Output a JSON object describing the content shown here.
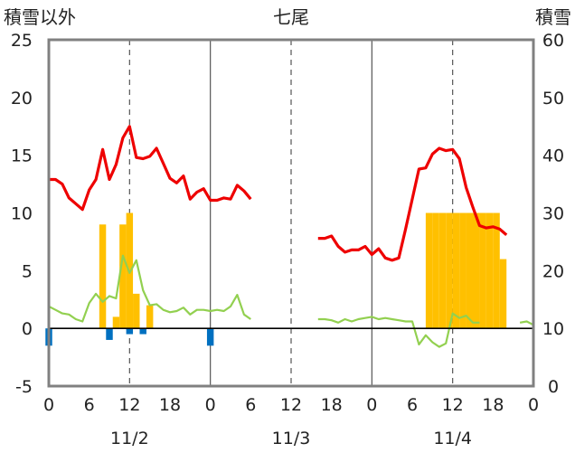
{
  "chart_data": {
    "type": "line",
    "title": "七尾",
    "ylabel_left": "積雪以外",
    "ylabel_right": "積雪",
    "ylim_left": [
      -5,
      25
    ],
    "ylim_right": [
      0,
      60
    ],
    "y_ticks_left": [
      "25",
      "20",
      "15",
      "10",
      "5",
      "0",
      "-5"
    ],
    "y_ticks_right": [
      "60",
      "50",
      "40",
      "30",
      "20",
      "10",
      "0"
    ],
    "x_range_hours": [
      0,
      72
    ],
    "x_tick_labels": [
      "0",
      "6",
      "12",
      "18",
      "0",
      "6",
      "12",
      "18",
      "0",
      "6",
      "12",
      "18",
      "0"
    ],
    "date_labels": [
      "11/2",
      "11/3",
      "11/4"
    ],
    "grid": "vertical dashed at 12:00, solid at day boundaries",
    "colors": {
      "temperature": "#ee0000",
      "humidity_line": "#92d050",
      "snow_bar": "#ffc000",
      "precip_bar": "#0070c0",
      "frame": "#808080",
      "zero_line": "#000000"
    },
    "series": [
      {
        "name": "",
        "kind": "line",
        "axis": "left",
        "color": "#ee0000",
        "segments": [
          [
            [
              0,
              12.9
            ],
            [
              1,
              12.9
            ],
            [
              2,
              12.5
            ],
            [
              3,
              11.3
            ],
            [
              4,
              10.8
            ],
            [
              5,
              10.3
            ],
            [
              6,
              12.0
            ],
            [
              7,
              12.9
            ],
            [
              8,
              15.5
            ],
            [
              9,
              12.9
            ],
            [
              10,
              14.2
            ],
            [
              11,
              16.5
            ],
            [
              12,
              17.5
            ],
            [
              13,
              14.8
            ],
            [
              14,
              14.7
            ],
            [
              15,
              14.9
            ],
            [
              16,
              15.6
            ],
            [
              17,
              14.3
            ],
            [
              18,
              13.0
            ],
            [
              19,
              12.6
            ],
            [
              20,
              13.2
            ],
            [
              21,
              11.2
            ],
            [
              22,
              11.8
            ],
            [
              23,
              12.1
            ],
            [
              24,
              11.1
            ],
            [
              25,
              11.1
            ],
            [
              26,
              11.3
            ],
            [
              27,
              11.2
            ],
            [
              28,
              12.4
            ],
            [
              29,
              11.9
            ],
            [
              30,
              11.2
            ]
          ],
          [
            [
              40,
              7.8
            ],
            [
              41,
              7.8
            ],
            [
              42,
              8.0
            ],
            [
              43,
              7.1
            ],
            [
              44,
              6.6
            ],
            [
              45,
              6.8
            ],
            [
              46,
              6.8
            ],
            [
              47,
              7.1
            ],
            [
              48,
              6.4
            ],
            [
              49,
              6.9
            ],
            [
              50,
              6.1
            ],
            [
              51,
              5.9
            ],
            [
              52,
              6.1
            ],
            [
              53,
              8.6
            ],
            [
              54,
              11.2
            ],
            [
              55,
              13.8
            ],
            [
              56,
              13.9
            ],
            [
              57,
              15.1
            ],
            [
              58,
              15.6
            ],
            [
              59,
              15.4
            ],
            [
              60,
              15.5
            ],
            [
              61,
              14.7
            ],
            [
              62,
              12.2
            ],
            [
              63,
              10.5
            ],
            [
              64,
              8.9
            ],
            [
              65,
              8.7
            ],
            [
              66,
              8.8
            ],
            [
              67,
              8.6
            ],
            [
              68,
              8.1
            ]
          ]
        ]
      },
      {
        "name": "",
        "kind": "line",
        "axis": "left",
        "color": "#92d050",
        "segments": [
          [
            [
              0,
              1.9
            ],
            [
              1,
              1.6
            ],
            [
              2,
              1.3
            ],
            [
              3,
              1.2
            ],
            [
              4,
              0.8
            ],
            [
              5,
              0.6
            ],
            [
              6,
              2.2
            ],
            [
              7,
              3.0
            ],
            [
              8,
              2.3
            ],
            [
              9,
              2.8
            ],
            [
              10,
              2.6
            ],
            [
              11,
              6.3
            ],
            [
              12,
              4.8
            ],
            [
              13,
              5.9
            ],
            [
              14,
              3.3
            ],
            [
              15,
              2.0
            ],
            [
              16,
              2.1
            ],
            [
              17,
              1.6
            ],
            [
              18,
              1.4
            ],
            [
              19,
              1.5
            ],
            [
              20,
              1.8
            ],
            [
              21,
              1.2
            ],
            [
              22,
              1.6
            ],
            [
              23,
              1.6
            ],
            [
              24,
              1.5
            ],
            [
              25,
              1.6
            ],
            [
              26,
              1.5
            ],
            [
              27,
              1.9
            ],
            [
              28,
              2.9
            ],
            [
              29,
              1.2
            ],
            [
              30,
              0.8
            ]
          ],
          [
            [
              40,
              0.8
            ],
            [
              41,
              0.8
            ],
            [
              42,
              0.7
            ],
            [
              43,
              0.5
            ],
            [
              44,
              0.8
            ],
            [
              45,
              0.6
            ],
            [
              46,
              0.8
            ],
            [
              47,
              0.9
            ],
            [
              48,
              1.0
            ],
            [
              49,
              0.8
            ],
            [
              50,
              0.9
            ],
            [
              51,
              0.8
            ],
            [
              52,
              0.7
            ],
            [
              53,
              0.6
            ],
            [
              54,
              0.6
            ],
            [
              55,
              -1.4
            ],
            [
              56,
              -0.6
            ],
            [
              57,
              -1.2
            ],
            [
              58,
              -1.6
            ],
            [
              59,
              -1.3
            ],
            [
              60,
              1.3
            ],
            [
              61,
              0.9
            ],
            [
              62,
              1.1
            ],
            [
              63,
              0.5
            ],
            [
              64,
              0.5
            ]
          ],
          [
            [
              70,
              0.5
            ],
            [
              71,
              0.6
            ],
            [
              72,
              0.3
            ]
          ]
        ]
      },
      {
        "name": "",
        "kind": "bar",
        "axis": "right",
        "color": "#ffc000",
        "points": [
          [
            56.5,
            30
          ],
          [
            57.5,
            30
          ],
          [
            58.5,
            30
          ],
          [
            59.5,
            30
          ],
          [
            60.5,
            30
          ],
          [
            61.5,
            30
          ],
          [
            62.5,
            30
          ],
          [
            63.5,
            30
          ],
          [
            64.5,
            30
          ],
          [
            65.5,
            30
          ],
          [
            66.5,
            30
          ],
          [
            67.5,
            22
          ]
        ]
      },
      {
        "name": "",
        "kind": "bar",
        "axis": "left",
        "color": "#ffc000",
        "points": [
          [
            8,
            9
          ],
          [
            10,
            1
          ],
          [
            11,
            9
          ],
          [
            12,
            10
          ],
          [
            13,
            3
          ],
          [
            15,
            2
          ]
        ]
      },
      {
        "name": "",
        "kind": "bar",
        "axis": "left",
        "color": "#0070c0",
        "points": [
          [
            0,
            -1.5
          ],
          [
            9,
            -1
          ],
          [
            12,
            -0.5
          ],
          [
            14,
            -0.5
          ],
          [
            24,
            -1.5
          ]
        ]
      }
    ]
  }
}
